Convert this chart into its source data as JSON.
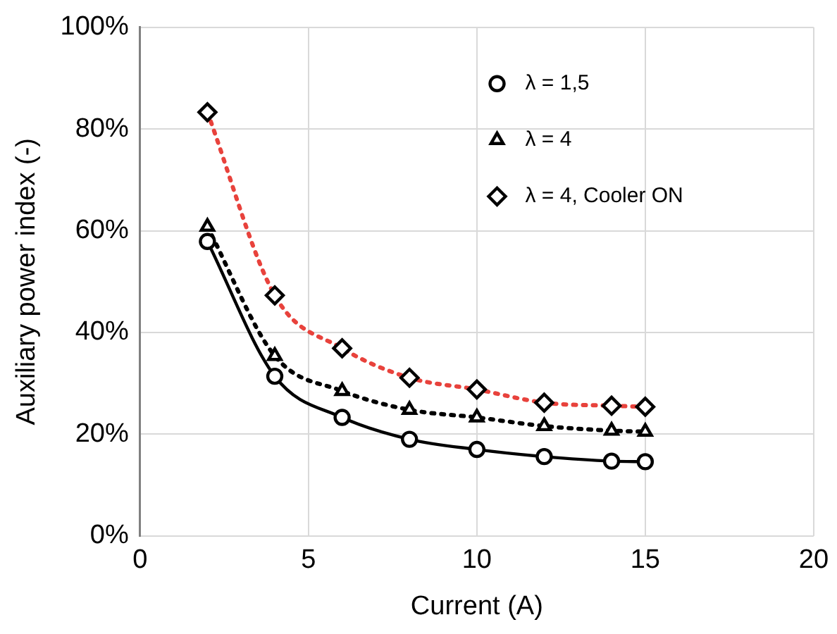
{
  "chart_data": {
    "type": "scatter",
    "xlabel": "Current (A)",
    "ylabel": "Auxiliary power index (-)",
    "xlim": [
      0,
      20
    ],
    "xticks": [
      0,
      5,
      10,
      15,
      20
    ],
    "ylim": [
      0,
      100
    ],
    "yticks": [
      {
        "value": 0,
        "label": "0%"
      },
      {
        "value": 20,
        "label": "20%"
      },
      {
        "value": 40,
        "label": "40%"
      },
      {
        "value": 60,
        "label": "60%"
      },
      {
        "value": 80,
        "label": "80%"
      },
      {
        "value": 100,
        "label": "100%"
      }
    ],
    "grid": true,
    "legend": "top right",
    "series": [
      {
        "name": "λ = 1,5",
        "color": "#000000",
        "marker": "circle",
        "x": [
          2,
          4,
          6,
          8,
          10,
          12,
          14,
          15
        ],
        "values": [
          57.9,
          31.4,
          23.3,
          19.0,
          17.0,
          15.6,
          14.7,
          14.6
        ]
      },
      {
        "name": "λ = 4",
        "color": "#000000",
        "marker": "triangle",
        "x": [
          2,
          4,
          6,
          8,
          10,
          12,
          14,
          15
        ],
        "values": [
          60.8,
          35.4,
          28.5,
          24.8,
          23.3,
          21.6,
          20.7,
          20.5
        ]
      },
      {
        "name": "λ = 4, Cooler ON",
        "color": "#000000",
        "marker": "diamond",
        "x": [
          2,
          4,
          6,
          8,
          10,
          12,
          14,
          15
        ],
        "values": [
          83.3,
          47.3,
          36.9,
          31.1,
          28.8,
          26.2,
          25.6,
          25.4
        ]
      },
      {
        "type": "line",
        "color": "#000000",
        "marker": "none",
        "line_style": "solid",
        "x": [
          2,
          4,
          6,
          8,
          10,
          12,
          14,
          15
        ],
        "values": [
          57.9,
          31.4,
          23.3,
          19.0,
          17.0,
          15.6,
          14.7,
          14.6
        ]
      },
      {
        "type": "line",
        "color": "#000000",
        "marker": "none",
        "line_style": "dotted",
        "x": [
          2,
          4,
          6,
          8,
          10,
          12,
          14,
          15
        ],
        "values": [
          60.8,
          35.4,
          28.5,
          24.8,
          23.3,
          21.6,
          20.7,
          20.5
        ]
      },
      {
        "type": "line",
        "color": "#e8423c",
        "marker": "none",
        "line_style": "dotted",
        "x": [
          2,
          4,
          6,
          8,
          10,
          12,
          14,
          15
        ],
        "values": [
          83.3,
          47.3,
          36.9,
          31.1,
          28.8,
          26.2,
          25.6,
          25.4
        ]
      }
    ]
  }
}
